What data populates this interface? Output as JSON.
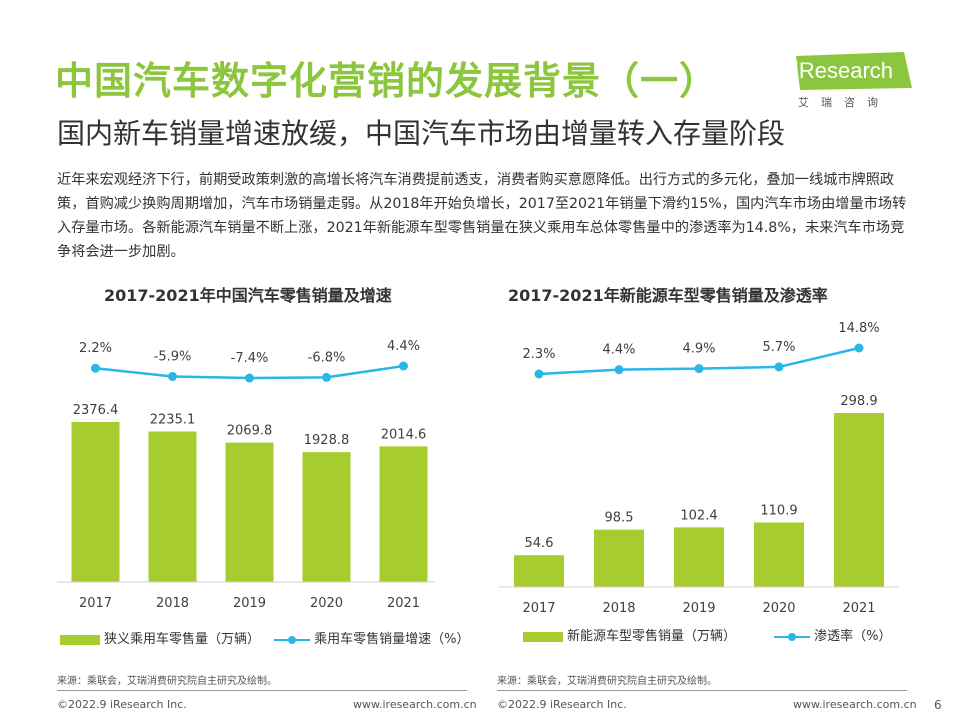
{
  "page": {
    "title": "中国汽车数字化营销的发展背景（一）",
    "subtitle": "国内新车销量增速放缓，中国汽车市场由增量转入存量阶段",
    "body": "近年来宏观经济下行，前期受政策刺激的高增长将汽车消费提前透支，消费者购买意愿降低。出行方式的多元化，叠加一线城市牌照政策，首购减少换购周期增加，汽车市场销量走弱。从2018年开始负增长，2017至2021年销量下滑约15%，国内汽车市场由增量市场转入存量市场。各新能源汽车销量不断上涨，2021年新能源车型零售销量在狭义乘用车总体零售量中的渗透率为14.8%，未来汽车市场竞争将会进一步加剧。",
    "page_number": "6"
  },
  "logo": {
    "name": "iResearch",
    "sub": "艾瑞咨询"
  },
  "colors": {
    "title_green": "#8cc63f",
    "bar_green": "#a6cd2d",
    "line_blue": "#29b6e8"
  },
  "chart_data": [
    {
      "type": "bar",
      "title": "2017-2021年中国汽车零售销量及增速",
      "categories": [
        "2017",
        "2018",
        "2019",
        "2020",
        "2021"
      ],
      "series": [
        {
          "name": "狭义乘用车零售量（万辆）",
          "type": "bar",
          "values": [
            2376.4,
            2235.1,
            2069.8,
            1928.8,
            2014.6
          ],
          "labels": [
            "2376.4",
            "2235.1",
            "2069.8",
            "1928.8",
            "2014.6"
          ]
        },
        {
          "name": "乘用车零售销量增速（%）",
          "type": "line",
          "values": [
            2.2,
            -5.9,
            -7.4,
            -6.8,
            4.4
          ],
          "labels": [
            "2.2%",
            "-5.9%",
            "-7.4%",
            "-6.8%",
            "4.4%"
          ]
        }
      ],
      "source": "来源：乘联会，艾瑞消费研究院自主研究及绘制。"
    },
    {
      "type": "bar",
      "title": "2017-2021年新能源车型零售销量及渗透率",
      "categories": [
        "2017",
        "2018",
        "2019",
        "2020",
        "2021"
      ],
      "series": [
        {
          "name": "新能源车型零售销量（万辆）",
          "type": "bar",
          "values": [
            54.6,
            98.5,
            102.4,
            110.9,
            298.9
          ],
          "labels": [
            "54.6",
            "98.5",
            "102.4",
            "110.9",
            "298.9"
          ]
        },
        {
          "name": "渗透率（%）",
          "type": "line",
          "values": [
            2.3,
            4.4,
            4.9,
            5.7,
            14.8
          ],
          "labels": [
            "2.3%",
            "4.4%",
            "4.9%",
            "5.7%",
            "14.8%"
          ]
        }
      ],
      "source": "来源：乘联会，艾瑞消费研究院自主研究及绘制。"
    }
  ],
  "footer": {
    "left_copyright": "©2022.9 iResearch Inc.",
    "left_url": "www.iresearch.com.cn",
    "right_copyright": "©2022.9 iResearch Inc.",
    "right_url": "www.iresearch.com.cn"
  }
}
